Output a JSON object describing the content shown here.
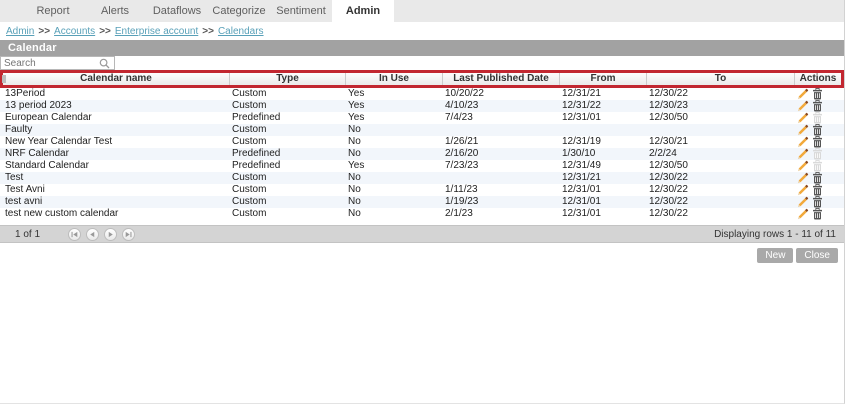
{
  "tabs": [
    {
      "label": "Report",
      "active": false
    },
    {
      "label": "Alerts",
      "active": false
    },
    {
      "label": "Dataflows",
      "active": false
    },
    {
      "label": "Categorize",
      "active": false
    },
    {
      "label": "Sentiment",
      "active": false
    },
    {
      "label": "Admin",
      "active": true
    }
  ],
  "breadcrumb": {
    "separator": ">>",
    "links": [
      "Admin",
      "Accounts",
      "Enterprise account",
      "Calendars"
    ]
  },
  "page": {
    "title": "Calendar"
  },
  "search": {
    "placeholder": "Search",
    "value": ""
  },
  "table": {
    "columns": [
      "Calendar name",
      "Type",
      "In Use",
      "Last Published Date",
      "From",
      "To",
      "Actions"
    ],
    "rows": [
      {
        "name": "13Period",
        "type": "Custom",
        "in_use": "Yes",
        "last_published": "10/20/22",
        "from": "12/31/21",
        "to": "12/30/22",
        "delete_enabled": true
      },
      {
        "name": "13 period 2023",
        "type": "Custom",
        "in_use": "Yes",
        "last_published": "4/10/23",
        "from": "12/31/22",
        "to": "12/30/23",
        "delete_enabled": true
      },
      {
        "name": "European Calendar",
        "type": "Predefined",
        "in_use": "Yes",
        "last_published": "7/4/23",
        "from": "12/31/01",
        "to": "12/30/50",
        "delete_enabled": false
      },
      {
        "name": "Faulty",
        "type": "Custom",
        "in_use": "No",
        "last_published": "",
        "from": "",
        "to": "",
        "delete_enabled": true
      },
      {
        "name": "New Year Calendar Test",
        "type": "Custom",
        "in_use": "No",
        "last_published": "1/26/21",
        "from": "12/31/19",
        "to": "12/30/21",
        "delete_enabled": true
      },
      {
        "name": "NRF Calendar",
        "type": "Predefined",
        "in_use": "No",
        "last_published": "2/16/20",
        "from": "1/30/10",
        "to": "2/2/24",
        "delete_enabled": false
      },
      {
        "name": "Standard Calendar",
        "type": "Predefined",
        "in_use": "Yes",
        "last_published": "7/23/23",
        "from": "12/31/49",
        "to": "12/30/50",
        "delete_enabled": false
      },
      {
        "name": "Test",
        "type": "Custom",
        "in_use": "No",
        "last_published": "",
        "from": "12/31/21",
        "to": "12/30/22",
        "delete_enabled": true
      },
      {
        "name": "Test Avni",
        "type": "Custom",
        "in_use": "No",
        "last_published": "1/11/23",
        "from": "12/31/01",
        "to": "12/30/22",
        "delete_enabled": true
      },
      {
        "name": "test avni",
        "type": "Custom",
        "in_use": "No",
        "last_published": "1/19/23",
        "from": "12/31/01",
        "to": "12/30/22",
        "delete_enabled": true
      },
      {
        "name": "test new custom calendar",
        "type": "Custom",
        "in_use": "No",
        "last_published": "2/1/23",
        "from": "12/31/01",
        "to": "12/30/22",
        "delete_enabled": true
      }
    ]
  },
  "pager": {
    "page_label": "1 of 1",
    "buttons": [
      "first",
      "previous",
      "next",
      "last"
    ],
    "displaying": "Displaying rows 1 - 11 of 11"
  },
  "footer": {
    "new_label": "New",
    "close_label": "Close"
  },
  "colors": {
    "header_highlight_border": "#c22730",
    "breadcrumb_link": "#58a0b8",
    "title_bar_bg": "#a2a2a2",
    "row_alt_bg": "#f2f6fb",
    "pager_bar_bg": "#d4d4d4",
    "button_bg": "#a9a9a9",
    "pencil_icon": "#f2a93b",
    "trash_icon": "#555555",
    "trash_icon_disabled": "#d9d9d9"
  }
}
